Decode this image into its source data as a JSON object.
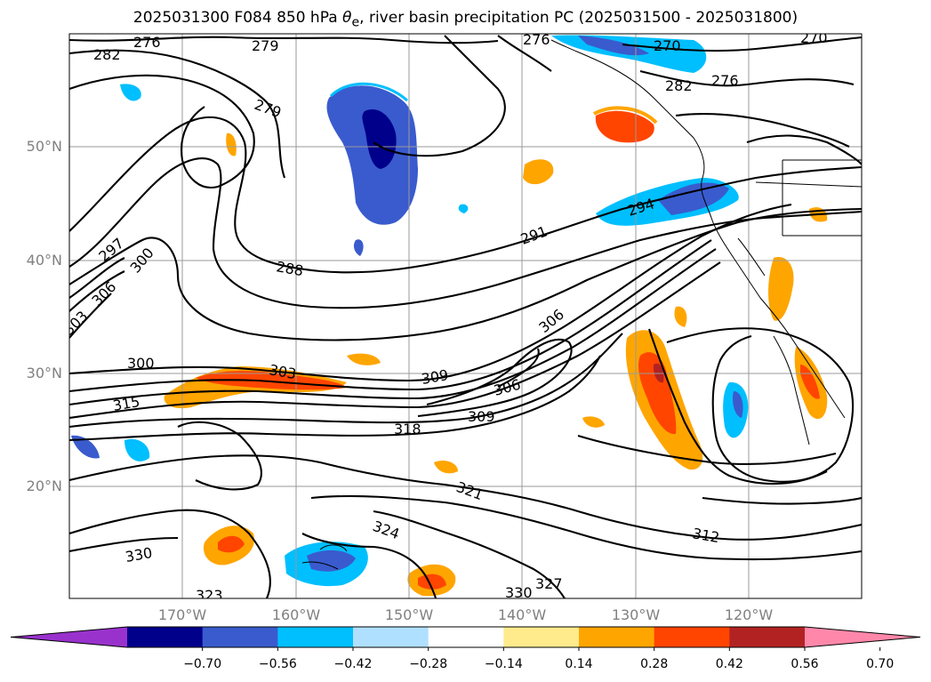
{
  "title": {
    "prefix": "2025031300 F084 850 hPa ",
    "theta": "θ",
    "sub": "e",
    "suffix": ", river basin precipitation PC (2025031500 - 2025031800)"
  },
  "axes": {
    "lat_labels": [
      "50°N",
      "40°N",
      "30°N",
      "20°N"
    ],
    "lon_labels": [
      "170°W",
      "160°W",
      "150°W",
      "140°W",
      "130°W",
      "120°W"
    ]
  },
  "contour_labels": [
    "276",
    "279",
    "282",
    "279",
    "276",
    "270",
    "270",
    "282",
    "276",
    "294",
    "291",
    "288",
    "297",
    "300",
    "306",
    "303",
    "300",
    "303",
    "309",
    "306",
    "309",
    "315",
    "318",
    "306",
    "321",
    "324",
    "330",
    "330",
    "327",
    "312",
    "323"
  ],
  "colorbar": {
    "ticks": [
      "−0.70",
      "−0.56",
      "−0.42",
      "−0.28",
      "−0.14",
      "0.14",
      "0.28",
      "0.42",
      "0.56",
      "0.70"
    ],
    "colors": [
      "#9932CC",
      "#00008B",
      "#3A5BCD",
      "#00BFFF",
      "#B0E0FF",
      "#FFFFFF",
      "#FFEB8C",
      "#FFA500",
      "#FF4500",
      "#B22222",
      "#FF88AA"
    ]
  },
  "colors": {
    "contour": "#000000",
    "grid": "#9a9a9a",
    "coast": "#000000"
  }
}
